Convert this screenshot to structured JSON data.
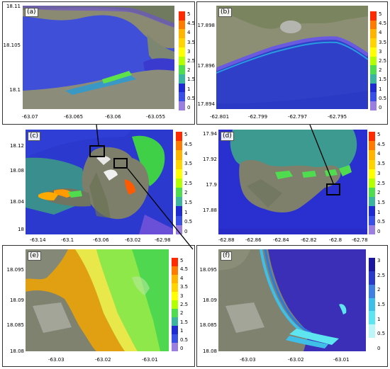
{
  "colorbar_ticks": [
    "5",
    "4.5",
    "4",
    "3.5",
    "3",
    "2.5",
    "2",
    "1.5",
    "1",
    "0.5",
    "0"
  ],
  "colorbar_f_ticks": [
    "3",
    "2.5",
    "2",
    "1.5",
    "1",
    "0.5",
    "0"
  ],
  "colors": {
    "scale": [
      "#ff2a00",
      "#ff7a00",
      "#ffb400",
      "#ffd400",
      "#ffff00",
      "#b4ff00",
      "#4fdc4f",
      "#3cb4a0",
      "#1e2ad2",
      "#3a4fe6",
      "#9b7fe0"
    ],
    "scale_f": [
      "#1a16a0",
      "#2a3ac8",
      "#3f7fe0",
      "#3fbfe8",
      "#5ee6f0",
      "#bdf6f6",
      "#ffffff"
    ]
  },
  "panels": {
    "a": {
      "label": "(a)",
      "x_ticks": [
        "-63.07",
        "-63.065",
        "-63.06",
        "-63.055"
      ],
      "y_ticks": [
        "18.11",
        "18.105",
        "18.1"
      ]
    },
    "b": {
      "label": "(b)",
      "x_ticks": [
        "-62.801",
        "-62.799",
        "-62.797",
        "-62.795"
      ],
      "y_ticks": [
        "17.898",
        "17.896",
        "17.894"
      ]
    },
    "c": {
      "label": "(c)",
      "x_ticks": [
        "-63.14",
        "-63.1",
        "-63.06",
        "-63.02",
        "-62.98"
      ],
      "y_ticks": [
        "18.12",
        "18.08",
        "18.04",
        "18"
      ]
    },
    "d": {
      "label": "(d)",
      "x_ticks": [
        "-62.88",
        "-62.86",
        "-62.84",
        "-62.82",
        "-62.8",
        "-62.78"
      ],
      "y_ticks": [
        "17.94",
        "17.92",
        "17.9",
        "17.88"
      ]
    },
    "e": {
      "label": "(e)",
      "x_ticks": [
        "-63.03",
        "-63.02",
        "-63.01"
      ],
      "y_ticks": [
        "18.095",
        "18.09",
        "18.085",
        "18.08"
      ]
    },
    "f": {
      "label": "(f)",
      "x_ticks": [
        "-63.03",
        "-63.02",
        "-63.01"
      ],
      "y_ticks": [
        "18.095",
        "18.09",
        "18.085",
        "18.08"
      ]
    }
  }
}
